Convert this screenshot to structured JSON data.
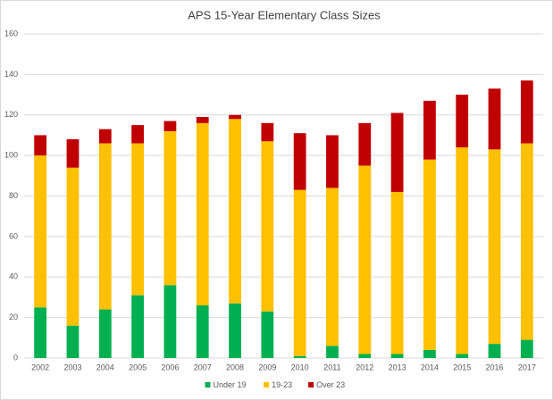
{
  "chart_data": {
    "type": "stacked_bar",
    "title": "APS 15-Year Elementary Class Sizes",
    "categories": [
      "2002",
      "2003",
      "2004",
      "2005",
      "2006",
      "2007",
      "2008",
      "2009",
      "2010",
      "2011",
      "2012",
      "2013",
      "2014",
      "2015",
      "2016",
      "2017"
    ],
    "series": [
      {
        "name": "Under 19",
        "color": "#00b050",
        "values": [
          25,
          16,
          24,
          31,
          36,
          26,
          27,
          23,
          1,
          6,
          2,
          2,
          4,
          2,
          7,
          9
        ]
      },
      {
        "name": "19-23",
        "color": "#ffc000",
        "values": [
          75,
          78,
          82,
          75,
          76,
          90,
          91,
          84,
          82,
          78,
          93,
          80,
          94,
          102,
          96,
          97
        ]
      },
      {
        "name": "Over 23",
        "color": "#c00000",
        "values": [
          10,
          14,
          7,
          9,
          5,
          3,
          2,
          9,
          28,
          26,
          21,
          39,
          29,
          26,
          30,
          31
        ]
      }
    ],
    "ylim": [
      0,
      160
    ],
    "yticks": [
      0,
      20,
      40,
      60,
      80,
      100,
      120,
      140,
      160
    ],
    "grid": true,
    "legend": "bottom"
  }
}
